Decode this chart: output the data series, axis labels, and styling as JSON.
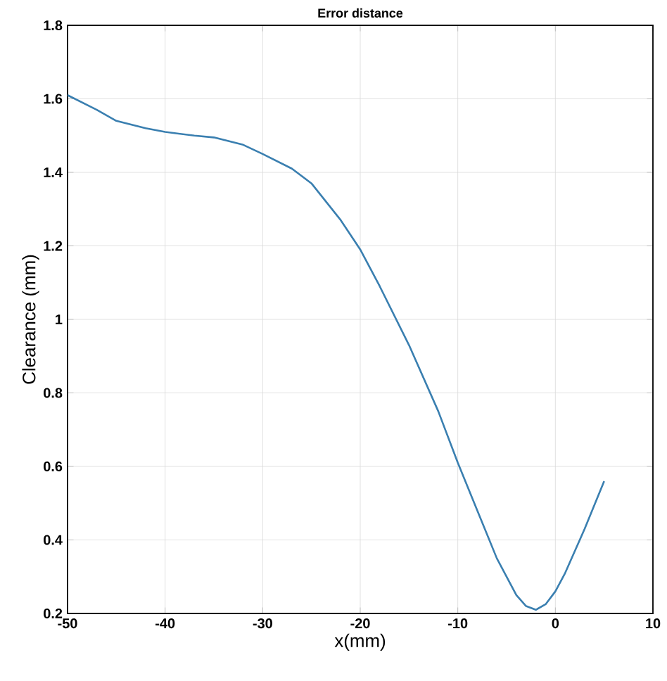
{
  "chart_data": {
    "type": "line",
    "title": "Error distance",
    "xlabel": "x(mm)",
    "ylabel": "Clearance  (mm)",
    "x": [
      -50,
      -47,
      -45,
      -42,
      -40,
      -37,
      -35,
      -32,
      -30,
      -27,
      -25,
      -22,
      -20,
      -18,
      -15,
      -12,
      -10,
      -8,
      -6,
      -4,
      -3,
      -2,
      -1,
      0,
      1,
      3,
      5
    ],
    "series": [
      {
        "color": "#3a7fb0",
        "values": [
          1.61,
          1.57,
          1.54,
          1.52,
          1.51,
          1.5,
          1.495,
          1.475,
          1.45,
          1.41,
          1.37,
          1.27,
          1.19,
          1.09,
          0.93,
          0.75,
          0.61,
          0.48,
          0.35,
          0.25,
          0.22,
          0.21,
          0.225,
          0.26,
          0.31,
          0.43,
          0.56
        ]
      }
    ],
    "xlim": [
      -50,
      10
    ],
    "ylim": [
      0.2,
      1.8
    ],
    "xticks": [
      -50,
      -40,
      -30,
      -20,
      -10,
      0,
      10
    ],
    "yticks": [
      0.2,
      0.4,
      0.6,
      0.8,
      1,
      1.2,
      1.4,
      1.6,
      1.8
    ],
    "grid": true,
    "marker": "none",
    "line_style": "solid"
  }
}
